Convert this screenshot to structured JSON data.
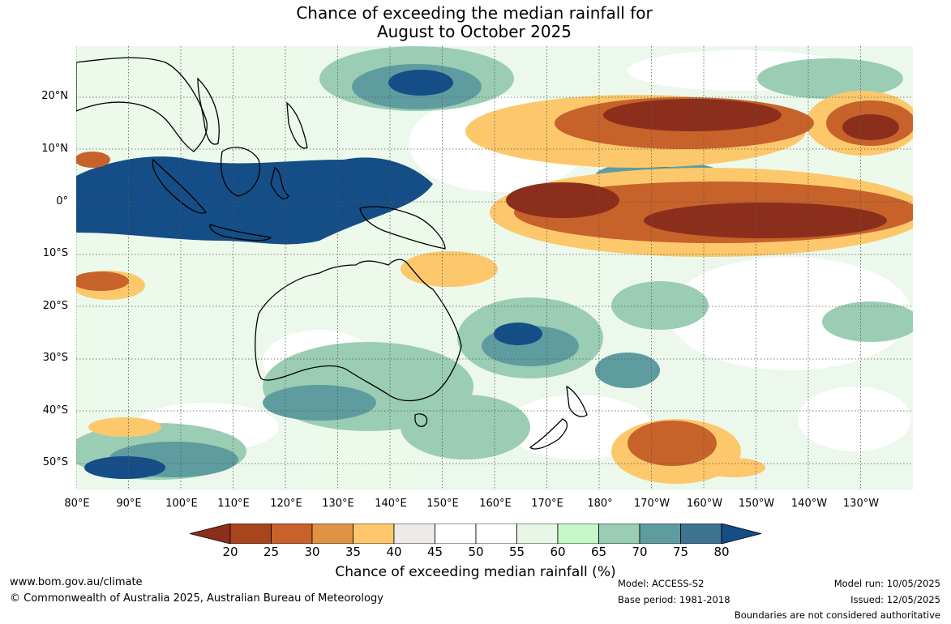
{
  "title": {
    "line1": "Chance of exceeding the median rainfall for",
    "line2": "August to October 2025"
  },
  "map": {
    "lat_labels": [
      "20°N",
      "10°N",
      "0°",
      "10°S",
      "20°S",
      "30°S",
      "40°S",
      "50°S"
    ],
    "lon_labels": [
      "80°E",
      "90°E",
      "100°E",
      "110°E",
      "120°E",
      "130°E",
      "140°E",
      "150°E",
      "160°E",
      "170°E",
      "180°",
      "170°W",
      "160°W",
      "150°W",
      "140°W",
      "130°W"
    ],
    "region": "Indian Ocean, Maritime Continent, Australia and Pacific"
  },
  "legend": {
    "ticks": [
      "20",
      "25",
      "30",
      "35",
      "40",
      "45",
      "50",
      "55",
      "60",
      "65",
      "70",
      "75",
      "80"
    ],
    "colors": [
      "#8b2f1c",
      "#a8451f",
      "#c7622a",
      "#e09345",
      "#fcc86b",
      "#ecebe8",
      "#ffffff",
      "#ffffff",
      "#e8f6e7",
      "#c6f7c8",
      "#9acdb4",
      "#5f9ca0",
      "#3d7291",
      "#154d86"
    ],
    "label": "Chance of exceeding median rainfall (%)"
  },
  "footer": {
    "website": "www.bom.gov.au/climate",
    "copyright": "© Commonwealth of Australia 2025, Australian Bureau of Meteorology",
    "model": "Model: ACCESS-S2",
    "base_period": "Base period: 1981-2018",
    "model_run": "Model run: 10/05/2025",
    "issued": "Issued: 12/05/2025",
    "disclaimer": "Boundaries are not considered authoritative"
  }
}
